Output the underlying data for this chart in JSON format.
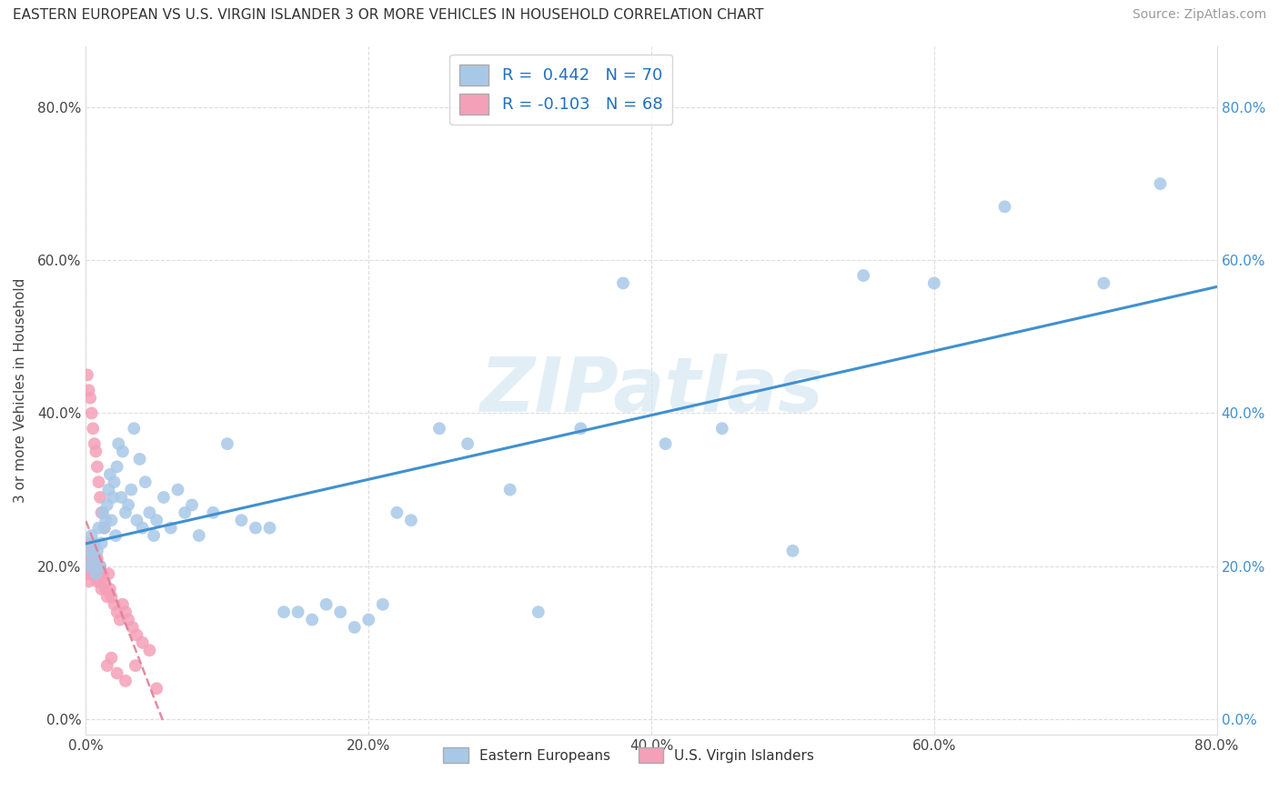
{
  "title": "EASTERN EUROPEAN VS U.S. VIRGIN ISLANDER 3 OR MORE VEHICLES IN HOUSEHOLD CORRELATION CHART",
  "source": "Source: ZipAtlas.com",
  "ylabel": "3 or more Vehicles in Household",
  "blue_R": 0.442,
  "blue_N": 70,
  "pink_R": -0.103,
  "pink_N": 68,
  "blue_color": "#a8c8e8",
  "pink_color": "#f4a0b8",
  "blue_line_color": "#4090d0",
  "pink_line_color": "#e08098",
  "background_color": "#ffffff",
  "watermark_text": "ZIPatlas",
  "legend_label_blue": "Eastern Europeans",
  "legend_label_pink": "U.S. Virgin Islanders",
  "xlim": [
    0.0,
    0.8
  ],
  "ylim": [
    -0.02,
    0.88
  ],
  "xticks": [
    0.0,
    0.2,
    0.4,
    0.6,
    0.8
  ],
  "yticks": [
    0.0,
    0.2,
    0.4,
    0.6,
    0.8
  ],
  "grid_color": "#dddddd",
  "figsize": [
    14.06,
    8.92
  ],
  "dpi": 100,
  "blue_x": [
    0.002,
    0.003,
    0.004,
    0.005,
    0.006,
    0.007,
    0.008,
    0.009,
    0.01,
    0.011,
    0.012,
    0.013,
    0.014,
    0.015,
    0.016,
    0.017,
    0.018,
    0.019,
    0.02,
    0.021,
    0.022,
    0.023,
    0.025,
    0.026,
    0.028,
    0.03,
    0.032,
    0.034,
    0.036,
    0.038,
    0.04,
    0.042,
    0.045,
    0.048,
    0.05,
    0.055,
    0.06,
    0.065,
    0.07,
    0.075,
    0.08,
    0.09,
    0.1,
    0.11,
    0.12,
    0.13,
    0.14,
    0.15,
    0.16,
    0.17,
    0.18,
    0.19,
    0.2,
    0.21,
    0.22,
    0.23,
    0.25,
    0.27,
    0.3,
    0.32,
    0.35,
    0.38,
    0.41,
    0.45,
    0.5,
    0.55,
    0.6,
    0.65,
    0.72,
    0.76
  ],
  "blue_y": [
    0.22,
    0.2,
    0.24,
    0.21,
    0.23,
    0.19,
    0.22,
    0.25,
    0.2,
    0.23,
    0.27,
    0.25,
    0.26,
    0.28,
    0.3,
    0.32,
    0.26,
    0.29,
    0.31,
    0.24,
    0.33,
    0.36,
    0.29,
    0.35,
    0.27,
    0.28,
    0.3,
    0.38,
    0.26,
    0.34,
    0.25,
    0.31,
    0.27,
    0.24,
    0.26,
    0.29,
    0.25,
    0.3,
    0.27,
    0.28,
    0.24,
    0.27,
    0.36,
    0.26,
    0.25,
    0.25,
    0.14,
    0.14,
    0.13,
    0.15,
    0.14,
    0.12,
    0.13,
    0.15,
    0.27,
    0.26,
    0.38,
    0.36,
    0.3,
    0.14,
    0.38,
    0.57,
    0.36,
    0.38,
    0.22,
    0.58,
    0.57,
    0.67,
    0.57,
    0.7
  ],
  "pink_x": [
    0.001,
    0.001,
    0.001,
    0.001,
    0.001,
    0.002,
    0.002,
    0.002,
    0.002,
    0.002,
    0.003,
    0.003,
    0.003,
    0.003,
    0.004,
    0.004,
    0.004,
    0.005,
    0.005,
    0.005,
    0.005,
    0.006,
    0.006,
    0.006,
    0.007,
    0.007,
    0.008,
    0.008,
    0.009,
    0.009,
    0.01,
    0.01,
    0.011,
    0.012,
    0.013,
    0.014,
    0.015,
    0.016,
    0.017,
    0.018,
    0.02,
    0.022,
    0.024,
    0.026,
    0.028,
    0.03,
    0.033,
    0.036,
    0.04,
    0.045,
    0.001,
    0.002,
    0.003,
    0.004,
    0.005,
    0.006,
    0.007,
    0.008,
    0.009,
    0.01,
    0.011,
    0.013,
    0.015,
    0.018,
    0.022,
    0.028,
    0.035,
    0.05
  ],
  "pink_y": [
    0.2,
    0.21,
    0.22,
    0.19,
    0.23,
    0.2,
    0.21,
    0.22,
    0.18,
    0.2,
    0.21,
    0.19,
    0.22,
    0.2,
    0.21,
    0.19,
    0.2,
    0.21,
    0.2,
    0.19,
    0.22,
    0.2,
    0.21,
    0.19,
    0.2,
    0.19,
    0.21,
    0.18,
    0.2,
    0.19,
    0.2,
    0.18,
    0.17,
    0.19,
    0.18,
    0.17,
    0.16,
    0.19,
    0.17,
    0.16,
    0.15,
    0.14,
    0.13,
    0.15,
    0.14,
    0.13,
    0.12,
    0.11,
    0.1,
    0.09,
    0.45,
    0.43,
    0.42,
    0.4,
    0.38,
    0.36,
    0.35,
    0.33,
    0.31,
    0.29,
    0.27,
    0.25,
    0.07,
    0.08,
    0.06,
    0.05,
    0.07,
    0.04
  ]
}
